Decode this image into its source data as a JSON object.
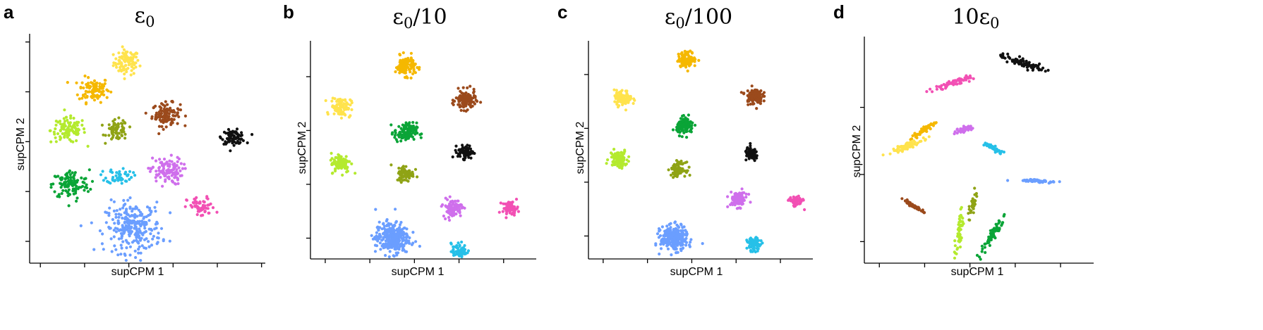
{
  "chart_data": [
    {
      "type": "scatter",
      "panel_label": "a",
      "title": "ε₀",
      "xlabel": "supCPM 1",
      "ylabel": "supCPM 2",
      "xlim": [
        0,
        10
      ],
      "ylim": [
        0,
        10
      ],
      "legend": "none",
      "grid": false,
      "xticks": [
        0.4,
        2.3,
        4.2,
        6.1,
        8.0,
        9.9
      ],
      "yticks": [
        0.9,
        3.1,
        5.3,
        7.5,
        9.7
      ],
      "series": [
        {
          "color": "#ffe34d",
          "center": [
            4.1,
            8.8
          ],
          "spread": [
            0.55,
            0.55
          ],
          "shape": "blob",
          "n": 90
        },
        {
          "color": "#f5b800",
          "center": [
            2.7,
            7.6
          ],
          "spread": [
            0.65,
            0.55
          ],
          "shape": "blob",
          "n": 100
        },
        {
          "color": "#9b4a1c",
          "center": [
            5.8,
            6.5
          ],
          "spread": [
            0.6,
            0.5
          ],
          "shape": "blob",
          "n": 110
        },
        {
          "color": "#b4ea2e",
          "center": [
            1.6,
            5.8
          ],
          "spread": [
            0.75,
            0.55
          ],
          "shape": "blob",
          "n": 110
        },
        {
          "color": "#8fa315",
          "center": [
            3.7,
            5.8
          ],
          "spread": [
            0.45,
            0.45
          ],
          "shape": "blob",
          "n": 70
        },
        {
          "color": "#111111",
          "center": [
            8.7,
            5.5
          ],
          "spread": [
            0.5,
            0.3
          ],
          "shape": "blob",
          "n": 80
        },
        {
          "color": "#0aa437",
          "center": [
            1.7,
            3.4
          ],
          "spread": [
            0.8,
            0.65
          ],
          "shape": "blob",
          "n": 120
        },
        {
          "color": "#26c0e8",
          "center": [
            3.8,
            3.8
          ],
          "spread": [
            0.55,
            0.35
          ],
          "shape": "blob",
          "n": 50
        },
        {
          "color": "#cf6fec",
          "center": [
            5.8,
            4.0
          ],
          "spread": [
            0.7,
            0.6
          ],
          "shape": "blob",
          "n": 110
        },
        {
          "color": "#f250b4",
          "center": [
            7.3,
            2.4
          ],
          "spread": [
            0.6,
            0.45
          ],
          "shape": "blob",
          "n": 60
        },
        {
          "color": "#6b9eff",
          "center": [
            4.4,
            1.5
          ],
          "spread": [
            1.2,
            1.1
          ],
          "shape": "blob",
          "n": 260
        }
      ]
    },
    {
      "type": "scatter",
      "panel_label": "b",
      "title": "ε₀/10",
      "xlabel": "supCPM 1",
      "ylabel": "supCPM 2",
      "xlim": [
        0,
        10
      ],
      "ylim": [
        0,
        10
      ],
      "legend": "none",
      "grid": false,
      "xticks": [
        0.6,
        2.6,
        4.6,
        6.6,
        8.6
      ],
      "yticks": [
        0.9,
        3.4,
        5.9,
        8.4
      ],
      "series": [
        {
          "color": "#f5b800",
          "center": [
            4.2,
            8.9
          ],
          "spread": [
            0.45,
            0.45
          ],
          "shape": "blob",
          "n": 110
        },
        {
          "color": "#9b4a1c",
          "center": [
            6.9,
            7.3
          ],
          "spread": [
            0.45,
            0.45
          ],
          "shape": "blob",
          "n": 120
        },
        {
          "color": "#ffe34d",
          "center": [
            1.3,
            7.0
          ],
          "spread": [
            0.45,
            0.45
          ],
          "shape": "blob",
          "n": 100
        },
        {
          "color": "#0aa437",
          "center": [
            4.2,
            5.8
          ],
          "spread": [
            0.5,
            0.45
          ],
          "shape": "blob",
          "n": 120
        },
        {
          "color": "#111111",
          "center": [
            6.9,
            4.9
          ],
          "spread": [
            0.35,
            0.3
          ],
          "shape": "blob",
          "n": 80
        },
        {
          "color": "#b4ea2e",
          "center": [
            1.3,
            4.4
          ],
          "spread": [
            0.45,
            0.45
          ],
          "shape": "blob",
          "n": 100
        },
        {
          "color": "#8fa315",
          "center": [
            4.2,
            3.9
          ],
          "spread": [
            0.38,
            0.38
          ],
          "shape": "blob",
          "n": 80
        },
        {
          "color": "#cf6fec",
          "center": [
            6.3,
            2.3
          ],
          "spread": [
            0.42,
            0.42
          ],
          "shape": "blob",
          "n": 100
        },
        {
          "color": "#f250b4",
          "center": [
            8.9,
            2.3
          ],
          "spread": [
            0.35,
            0.3
          ],
          "shape": "blob",
          "n": 60
        },
        {
          "color": "#6b9eff",
          "center": [
            3.6,
            0.9
          ],
          "spread": [
            0.75,
            0.75
          ],
          "shape": "blob",
          "n": 300
        },
        {
          "color": "#26c0e8",
          "center": [
            6.6,
            0.3
          ],
          "spread": [
            0.35,
            0.35
          ],
          "shape": "blob",
          "n": 70
        }
      ]
    },
    {
      "type": "scatter",
      "panel_label": "c",
      "title": "ε₀/100",
      "xlabel": "supCPM 1",
      "ylabel": "supCPM 2",
      "xlim": [
        0,
        10
      ],
      "ylim": [
        0,
        10
      ],
      "legend": "none",
      "grid": false,
      "xticks": [
        0.6,
        2.6,
        4.6,
        6.6,
        8.6
      ],
      "yticks": [
        1.0,
        3.5,
        6.0,
        8.5
      ],
      "series": [
        {
          "color": "#f5b800",
          "center": [
            4.4,
            9.2
          ],
          "spread": [
            0.4,
            0.35
          ],
          "shape": "blob",
          "n": 110
        },
        {
          "color": "#9b4a1c",
          "center": [
            7.4,
            7.5
          ],
          "spread": [
            0.38,
            0.38
          ],
          "shape": "blob",
          "n": 120
        },
        {
          "color": "#ffe34d",
          "center": [
            1.5,
            7.4
          ],
          "spread": [
            0.4,
            0.35
          ],
          "shape": "blob",
          "n": 100
        },
        {
          "color": "#0aa437",
          "center": [
            4.3,
            6.1
          ],
          "spread": [
            0.38,
            0.38
          ],
          "shape": "blob",
          "n": 110
        },
        {
          "color": "#111111",
          "center": [
            7.3,
            4.8
          ],
          "spread": [
            0.3,
            0.3
          ],
          "shape": "blob",
          "n": 80
        },
        {
          "color": "#b4ea2e",
          "center": [
            1.3,
            4.6
          ],
          "spread": [
            0.4,
            0.4
          ],
          "shape": "blob",
          "n": 100
        },
        {
          "color": "#8fa315",
          "center": [
            4.0,
            4.1
          ],
          "spread": [
            0.32,
            0.32
          ],
          "shape": "blob",
          "n": 80
        },
        {
          "color": "#cf6fec",
          "center": [
            6.7,
            2.7
          ],
          "spread": [
            0.4,
            0.35
          ],
          "shape": "blob",
          "n": 100
        },
        {
          "color": "#f250b4",
          "center": [
            9.3,
            2.6
          ],
          "spread": [
            0.3,
            0.25
          ],
          "shape": "blob",
          "n": 60
        },
        {
          "color": "#6b9eff",
          "center": [
            3.8,
            0.9
          ],
          "spread": [
            0.6,
            0.55
          ],
          "shape": "blob",
          "n": 300
        },
        {
          "color": "#26c0e8",
          "center": [
            7.4,
            0.6
          ],
          "spread": [
            0.3,
            0.3
          ],
          "shape": "blob",
          "n": 70
        }
      ]
    },
    {
      "type": "scatter",
      "panel_label": "d",
      "title": "10ε₀",
      "xlabel": "supCPM 1",
      "ylabel": "supCPM 2",
      "xlim": [
        0,
        10
      ],
      "ylim": [
        0,
        10
      ],
      "legend": "none",
      "grid": false,
      "xticks": [
        0.6,
        2.6,
        4.6,
        6.6,
        8.6
      ],
      "yticks": [
        0.9,
        3.9,
        6.9
      ],
      "series": [
        {
          "color": "#111111",
          "center": [
            6.9,
            8.9
          ],
          "spread": [
            0.18,
            0.95
          ],
          "shape": "streak",
          "angle": 70,
          "n": 80
        },
        {
          "color": "#f250b4",
          "center": [
            3.9,
            8.0
          ],
          "spread": [
            0.14,
            0.85
          ],
          "shape": "streak",
          "angle": -70,
          "n": 60
        },
        {
          "color": "#f5b800",
          "center": [
            2.6,
            5.9
          ],
          "spread": [
            0.12,
            0.55
          ],
          "shape": "streak",
          "angle": -58,
          "n": 60
        },
        {
          "color": "#ffe34d",
          "center": [
            1.9,
            5.2
          ],
          "spread": [
            0.14,
            0.75
          ],
          "shape": "streak",
          "angle": -70,
          "n": 70
        },
        {
          "color": "#cf6fec",
          "center": [
            4.3,
            5.9
          ],
          "spread": [
            0.12,
            0.4
          ],
          "shape": "streak",
          "angle": -75,
          "n": 40
        },
        {
          "color": "#26c0e8",
          "center": [
            5.6,
            5.1
          ],
          "spread": [
            0.1,
            0.45
          ],
          "shape": "streak",
          "angle": 60,
          "n": 40
        },
        {
          "color": "#6b9eff",
          "center": [
            7.6,
            3.6
          ],
          "spread": [
            0.06,
            0.8
          ],
          "shape": "streak",
          "angle": 87,
          "n": 60
        },
        {
          "color": "#9b4a1c",
          "center": [
            2.1,
            2.5
          ],
          "spread": [
            0.08,
            0.5
          ],
          "shape": "streak",
          "angle": 60,
          "n": 50
        },
        {
          "color": "#8fa315",
          "center": [
            4.7,
            2.5
          ],
          "spread": [
            0.14,
            0.5
          ],
          "shape": "streak",
          "angle": -15,
          "n": 40
        },
        {
          "color": "#b4ea2e",
          "center": [
            4.1,
            1.2
          ],
          "spread": [
            0.14,
            0.8
          ],
          "shape": "streak",
          "angle": -8,
          "n": 50
        },
        {
          "color": "#0aa437",
          "center": [
            5.6,
            1.2
          ],
          "spread": [
            0.16,
            0.85
          ],
          "shape": "streak",
          "angle": -30,
          "n": 70
        }
      ]
    }
  ]
}
